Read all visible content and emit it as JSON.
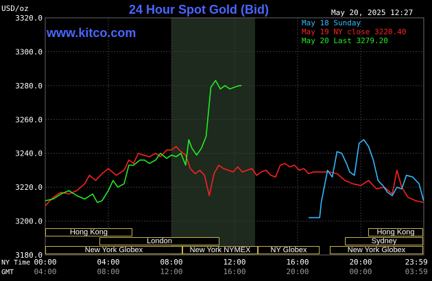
{
  "header": {
    "title": "24 Hour Spot Gold (Bid)",
    "brand": "www.kitco.com",
    "timestamp": "May 20, 2025 12:27",
    "units": "USD/oz"
  },
  "legend": [
    {
      "text": "May 18 Sunday",
      "color": "#33bbff"
    },
    {
      "text": "May 19 NY close 3220.40",
      "color": "#ff2020"
    },
    {
      "text": "May 20 Last 3279.20",
      "color": "#22ee22"
    }
  ],
  "axis": {
    "row1_label": "NY Time",
    "row2_label": "GMT"
  },
  "sessions": [
    {
      "label": "Hong Kong",
      "color": "#000000"
    },
    {
      "label": "London",
      "color": "#000000"
    },
    {
      "label": "New York Globex",
      "color": "#000000"
    },
    {
      "label": "New York NYMEX",
      "color": "#000000"
    },
    {
      "label": "NY Globex",
      "color": "#000000"
    },
    {
      "label": "Hong Kong",
      "color": "#000000"
    },
    {
      "label": "Sydney",
      "color": "#000000"
    },
    {
      "label": "New York Globex",
      "color": "#000000"
    }
  ],
  "chart_data": {
    "type": "line",
    "title": "24 Hour Spot Gold (Bid)",
    "ylabel": "USD/oz",
    "ylim": [
      3180,
      3320
    ],
    "y_ticks": [
      "3320.0",
      "3300.0",
      "3280.0",
      "3260.0",
      "3240.0",
      "3220.0",
      "3200.0",
      "3180.0"
    ],
    "x_ticks_ny": [
      "00:00",
      "04:00",
      "08:00",
      "12:00",
      "16:00",
      "20:00",
      "23:59"
    ],
    "x_ticks_gmt": [
      "04:00",
      "08:00",
      "12:00",
      "16:00",
      "20:00",
      "00:00",
      "03:59"
    ],
    "xlim_hours": [
      0,
      24
    ],
    "shaded_hours": [
      8,
      13.3
    ],
    "grid": true,
    "series": [
      {
        "name": "May 19 NY close 3220.40",
        "color": "#ff2020",
        "points": [
          [
            0,
            3209
          ],
          [
            0.5,
            3214
          ],
          [
            1,
            3217
          ],
          [
            1.5,
            3216
          ],
          [
            2,
            3218
          ],
          [
            2.5,
            3222
          ],
          [
            2.8,
            3227
          ],
          [
            3.2,
            3224
          ],
          [
            3.6,
            3228
          ],
          [
            4,
            3231
          ],
          [
            4.5,
            3227
          ],
          [
            5,
            3230
          ],
          [
            5.3,
            3236
          ],
          [
            5.6,
            3234
          ],
          [
            5.9,
            3240
          ],
          [
            6.2,
            3239
          ],
          [
            6.6,
            3238
          ],
          [
            7,
            3240
          ],
          [
            7.3,
            3238
          ],
          [
            7.7,
            3242
          ],
          [
            8,
            3242
          ],
          [
            8.3,
            3244
          ],
          [
            8.6,
            3241
          ],
          [
            8.9,
            3239
          ],
          [
            9.2,
            3231
          ],
          [
            9.5,
            3228
          ],
          [
            9.8,
            3230
          ],
          [
            10.1,
            3227
          ],
          [
            10.4,
            3215
          ],
          [
            10.7,
            3228
          ],
          [
            11,
            3233
          ],
          [
            11.3,
            3231
          ],
          [
            11.6,
            3230
          ],
          [
            11.9,
            3229
          ],
          [
            12.2,
            3232
          ],
          [
            12.5,
            3229
          ],
          [
            12.8,
            3230
          ],
          [
            13.1,
            3231
          ],
          [
            13.4,
            3227
          ],
          [
            13.7,
            3229
          ],
          [
            14,
            3230
          ],
          [
            14.3,
            3227
          ],
          [
            14.6,
            3226
          ],
          [
            14.9,
            3233
          ],
          [
            15.2,
            3234
          ],
          [
            15.5,
            3232
          ],
          [
            15.8,
            3233
          ],
          [
            16.1,
            3230
          ],
          [
            16.4,
            3231
          ],
          [
            16.7,
            3228
          ],
          [
            17,
            3229
          ],
          [
            17.5,
            3229
          ],
          [
            18,
            3229
          ],
          [
            18.5,
            3228
          ],
          [
            19,
            3224
          ],
          [
            19.5,
            3222
          ],
          [
            20,
            3221
          ],
          [
            20.5,
            3224
          ],
          [
            21,
            3219
          ],
          [
            21.5,
            3220
          ],
          [
            22,
            3216
          ],
          [
            22.3,
            3230
          ],
          [
            22.6,
            3220
          ],
          [
            23,
            3214
          ],
          [
            23.5,
            3212
          ],
          [
            23.99,
            3211
          ]
        ]
      },
      {
        "name": "May 20 Last 3279.20",
        "color": "#22ee22",
        "points": [
          [
            0,
            3212
          ],
          [
            0.5,
            3213
          ],
          [
            1,
            3216
          ],
          [
            1.5,
            3218
          ],
          [
            2,
            3215
          ],
          [
            2.5,
            3213
          ],
          [
            3,
            3216
          ],
          [
            3.3,
            3211
          ],
          [
            3.6,
            3212
          ],
          [
            4,
            3218
          ],
          [
            4.3,
            3224
          ],
          [
            4.6,
            3220
          ],
          [
            5,
            3222
          ],
          [
            5.3,
            3233
          ],
          [
            5.6,
            3233
          ],
          [
            6,
            3236
          ],
          [
            6.3,
            3236
          ],
          [
            6.6,
            3234
          ],
          [
            7,
            3236
          ],
          [
            7.3,
            3240
          ],
          [
            7.7,
            3237
          ],
          [
            8,
            3239
          ],
          [
            8.3,
            3238
          ],
          [
            8.6,
            3240
          ],
          [
            8.9,
            3233
          ],
          [
            9.1,
            3248
          ],
          [
            9.3,
            3243
          ],
          [
            9.6,
            3239
          ],
          [
            9.9,
            3243
          ],
          [
            10.2,
            3250
          ],
          [
            10.5,
            3279
          ],
          [
            10.8,
            3283
          ],
          [
            11.1,
            3278
          ],
          [
            11.4,
            3280
          ],
          [
            11.7,
            3278
          ],
          [
            12,
            3279
          ],
          [
            12.3,
            3280
          ],
          [
            12.45,
            3280
          ]
        ]
      },
      {
        "name": "May 18 Sunday",
        "color": "#33bbff",
        "points": [
          [
            16.7,
            3202
          ],
          [
            17.4,
            3202
          ],
          [
            17.5,
            3211
          ],
          [
            17.9,
            3230
          ],
          [
            18.2,
            3226
          ],
          [
            18.5,
            3241
          ],
          [
            18.8,
            3240
          ],
          [
            19.1,
            3234
          ],
          [
            19.3,
            3229
          ],
          [
            19.6,
            3227
          ],
          [
            19.9,
            3246
          ],
          [
            20.2,
            3248
          ],
          [
            20.5,
            3244
          ],
          [
            20.8,
            3236
          ],
          [
            21.1,
            3224
          ],
          [
            21.4,
            3221
          ],
          [
            21.7,
            3217
          ],
          [
            22,
            3215
          ],
          [
            22.3,
            3220
          ],
          [
            22.6,
            3219
          ],
          [
            22.9,
            3227
          ],
          [
            23.3,
            3226
          ],
          [
            23.7,
            3222
          ],
          [
            23.99,
            3212
          ]
        ]
      }
    ]
  }
}
